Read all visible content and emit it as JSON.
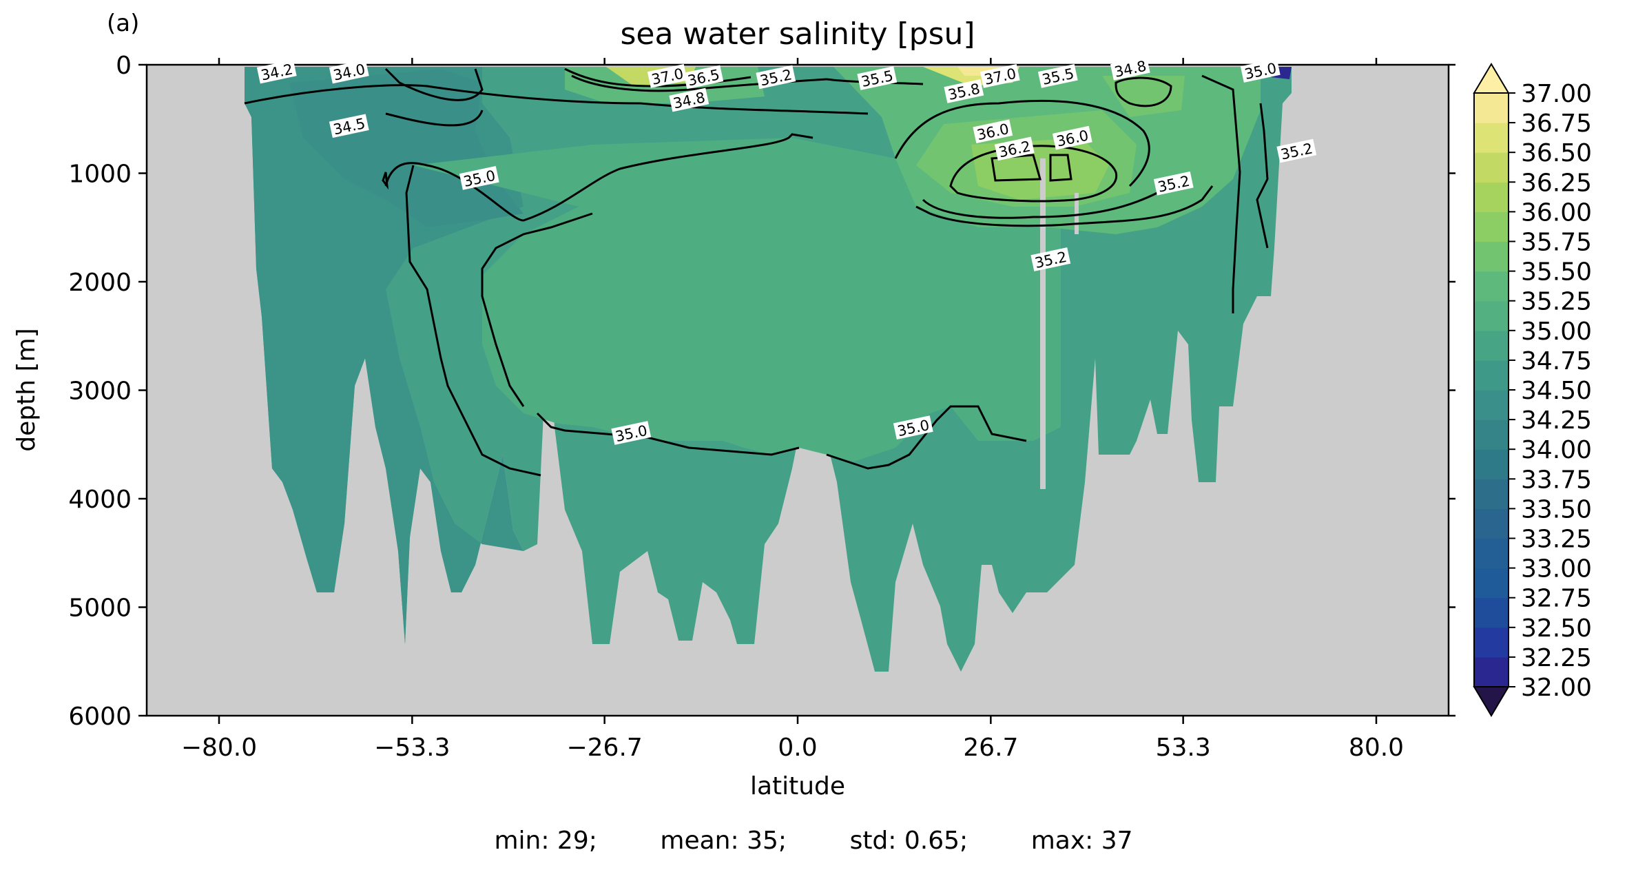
{
  "panel_label": "(a)",
  "stats_line": {
    "min": "min: 29;",
    "mean": "mean: 35;",
    "std": "std: 0.65;",
    "max": "max: 37"
  },
  "chart_data": {
    "type": "heatmap",
    "title": "sea water salinity [psu]",
    "xlabel": "latitude",
    "ylabel": "depth [m]",
    "xlim": [
      -90,
      90
    ],
    "ylim": [
      6000,
      0
    ],
    "x_ticks": [
      "-80.0",
      "-53.3",
      "-26.7",
      "0.0",
      "26.7",
      "53.3",
      "80.0"
    ],
    "x_tick_values": [
      -80.0,
      -53.3,
      -26.7,
      0.0,
      26.7,
      53.3,
      80.0
    ],
    "y_ticks": [
      "0",
      "1000",
      "2000",
      "3000",
      "4000",
      "5000",
      "6000"
    ],
    "y_tick_values": [
      0,
      1000,
      2000,
      3000,
      4000,
      5000,
      6000
    ],
    "colorbar": {
      "label_values": [
        "32.00",
        "32.25",
        "32.50",
        "32.75",
        "33.00",
        "33.25",
        "33.50",
        "33.75",
        "34.00",
        "34.25",
        "34.50",
        "34.75",
        "35.00",
        "35.25",
        "35.50",
        "35.75",
        "36.00",
        "36.25",
        "36.50",
        "36.75",
        "37.00"
      ],
      "colormap": [
        "#2a1a5e",
        "#2a2790",
        "#233aa0",
        "#1f4d9c",
        "#1f5a99",
        "#235f95",
        "#29658f",
        "#2d6e8b",
        "#2f7a88",
        "#348488",
        "#3a8f8a",
        "#3f9988",
        "#47a585",
        "#52b081",
        "#5dba7c",
        "#72c470",
        "#8ccd64",
        "#a6d35d",
        "#c2da63",
        "#dde374",
        "#f4e894"
      ],
      "extend": "both",
      "under_color": "#241548",
      "over_color": "#fdf0a6"
    },
    "missing_color": "#cccccc",
    "contour_levels": [
      34.0,
      34.2,
      34.5,
      34.8,
      35.0,
      35.2,
      35.5,
      35.8,
      36.0,
      36.2,
      36.5,
      37.0
    ],
    "contour_labels": [
      {
        "text": "35.0",
        "lat": -44,
        "depth": 1050
      },
      {
        "text": "34.8",
        "lat": -15,
        "depth": 330
      },
      {
        "text": "35.2",
        "lat": -3,
        "depth": 120
      },
      {
        "text": "34.5",
        "lat": -62,
        "depth": 570
      },
      {
        "text": "34.0",
        "lat": -62,
        "depth": 70
      },
      {
        "text": "34.2",
        "lat": -72,
        "depth": 70
      },
      {
        "text": "36.0",
        "lat": 27,
        "depth": 620
      },
      {
        "text": "36.0",
        "lat": 38,
        "depth": 680
      },
      {
        "text": "36.2",
        "lat": 30,
        "depth": 780
      },
      {
        "text": "35.8",
        "lat": 23,
        "depth": 250
      },
      {
        "text": "35.5",
        "lat": 11,
        "depth": 130
      },
      {
        "text": "37.0",
        "lat": -18,
        "depth": 110
      },
      {
        "text": "36.5",
        "lat": -13,
        "depth": 120
      },
      {
        "text": "37.0",
        "lat": 28,
        "depth": 110
      },
      {
        "text": "35.5",
        "lat": 36,
        "depth": 110
      },
      {
        "text": "34.8",
        "lat": 46,
        "depth": 40
      },
      {
        "text": "35.0",
        "lat": 64,
        "depth": 60
      },
      {
        "text": "35.2",
        "lat": 69,
        "depth": 800
      },
      {
        "text": "35.2",
        "lat": 52,
        "depth": 1100
      },
      {
        "text": "35.2",
        "lat": 35,
        "depth": 1800
      },
      {
        "text": "35.0",
        "lat": -23,
        "depth": 3400
      },
      {
        "text": "35.0",
        "lat": 16,
        "depth": 3350
      }
    ],
    "grid": false,
    "legend": "colorbar-right"
  }
}
